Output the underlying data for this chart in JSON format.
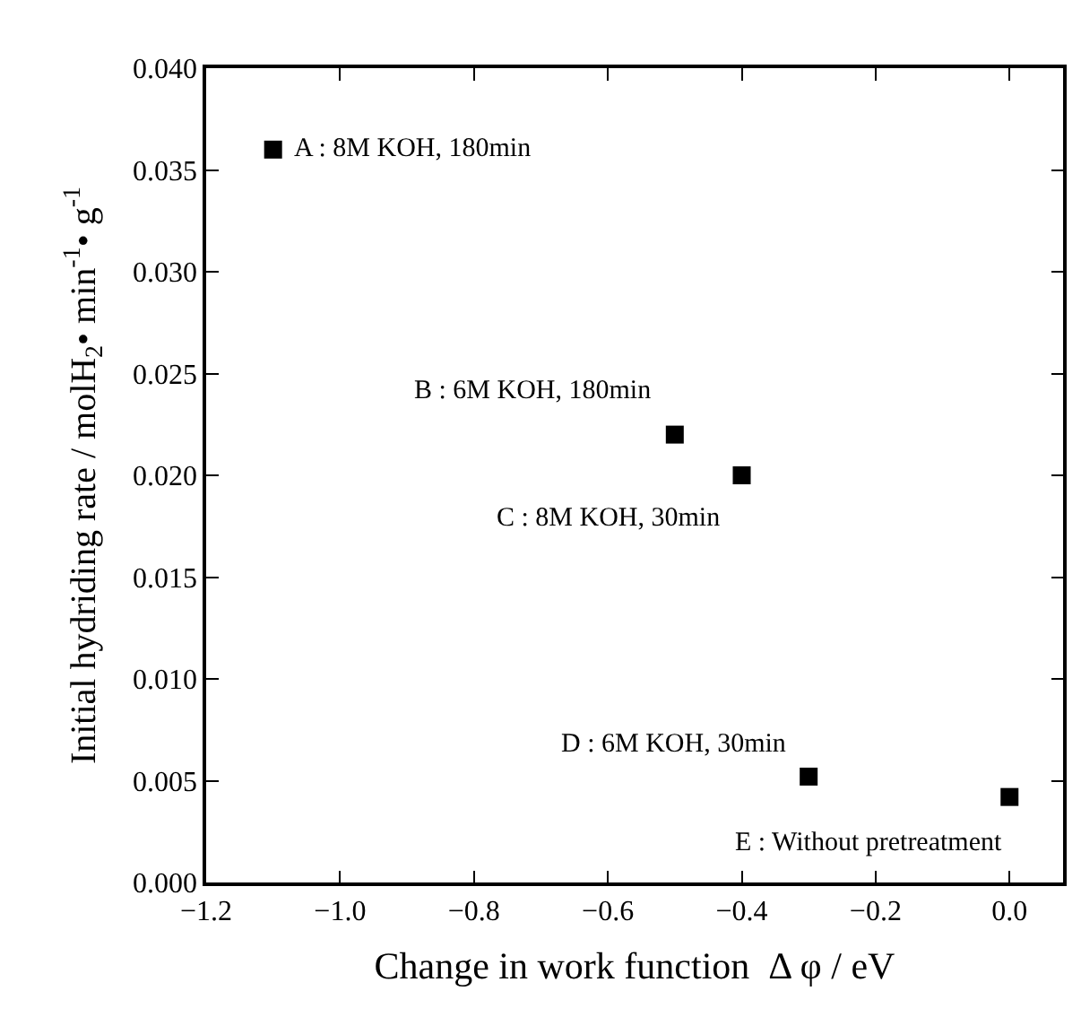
{
  "chart_data": {
    "type": "scatter",
    "xlabel": "Change in work function  Δ φ / eV",
    "ylabel": "Initial hydriding rate / molH$_{2}$• min$^{-1}$• g$^{-1}$",
    "x": [
      -1.1,
      -0.5,
      -0.4,
      -0.3,
      0.0
    ],
    "series": [
      {
        "color": "#000000",
        "values": [
          0.036,
          0.022,
          0.02,
          0.0052,
          0.0042
        ]
      }
    ],
    "marker": "square",
    "annotations": [
      {
        "text": "A : 8M KOH, 180min",
        "x": -1.1,
        "y": 0.036
      },
      {
        "text": "B : 6M KOH, 180min",
        "x": -0.5,
        "y": 0.022
      },
      {
        "text": "C : 8M KOH, 30min",
        "x": -0.4,
        "y": 0.02
      },
      {
        "text": "D : 6M KOH, 30min",
        "x": -0.3,
        "y": 0.0052
      },
      {
        "text": "E : Without pretreatment",
        "x": 0.0,
        "y": 0.0042
      }
    ],
    "xlim": [
      -1.2,
      0.08
    ],
    "ylim": [
      0,
      0.04
    ],
    "xticks": [
      {
        "value": -1.2,
        "label": "−1.2"
      },
      {
        "value": -1.0,
        "label": "−1.0"
      },
      {
        "value": -0.8,
        "label": "−0.8"
      },
      {
        "value": -0.6,
        "label": "−0.6"
      },
      {
        "value": -0.4,
        "label": "−0.4"
      },
      {
        "value": -0.2,
        "label": "−0.2"
      },
      {
        "value": 0.0,
        "label": "0.0"
      }
    ],
    "yticks": [
      {
        "value": 0,
        "label": "0.000"
      },
      {
        "value": 0.005,
        "label": "0.005"
      },
      {
        "value": 0.01,
        "label": "0.010"
      },
      {
        "value": 0.015,
        "label": "0.015"
      },
      {
        "value": 0.02,
        "label": "0.020"
      },
      {
        "value": 0.025,
        "label": "0.025"
      },
      {
        "value": 0.03,
        "label": "0.030"
      },
      {
        "value": 0.035,
        "label": "0.035"
      },
      {
        "value": 0.04,
        "label": "0.040"
      }
    ],
    "legend": false
  }
}
